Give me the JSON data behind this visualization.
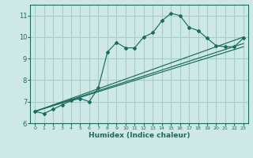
{
  "xlabel": "Humidex (Indice chaleur)",
  "ylabel": "",
  "xlim": [
    -0.5,
    23.5
  ],
  "ylim": [
    6.0,
    11.5
  ],
  "bg_color": "#cde8e5",
  "grid_color": "#a8ceca",
  "line_color": "#1a6b60",
  "xticks": [
    0,
    1,
    2,
    3,
    4,
    5,
    6,
    7,
    8,
    9,
    10,
    11,
    12,
    13,
    14,
    15,
    16,
    17,
    18,
    19,
    20,
    21,
    22,
    23
  ],
  "yticks": [
    6,
    7,
    8,
    9,
    10,
    11
  ],
  "line1_x": [
    0,
    1,
    2,
    3,
    4,
    5,
    6,
    7,
    8,
    9,
    10,
    11,
    12,
    13,
    14,
    15,
    16,
    17,
    18,
    19,
    20,
    21,
    22,
    23
  ],
  "line1_y": [
    6.55,
    6.45,
    6.65,
    6.85,
    7.05,
    7.15,
    7.0,
    7.65,
    9.3,
    9.75,
    9.5,
    9.5,
    10.0,
    10.2,
    10.75,
    11.1,
    11.0,
    10.45,
    10.3,
    9.95,
    9.6,
    9.55,
    9.55,
    9.95
  ],
  "line2_x": [
    0,
    23
  ],
  "line2_y": [
    6.55,
    10.0
  ],
  "line3_x": [
    0,
    23
  ],
  "line3_y": [
    6.55,
    9.7
  ],
  "line4_x": [
    0,
    23
  ],
  "line4_y": [
    6.55,
    9.55
  ]
}
